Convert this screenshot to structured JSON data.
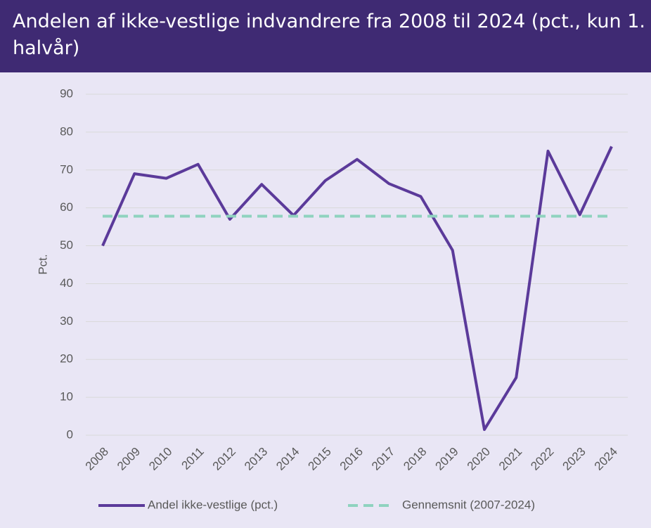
{
  "chart_data": {
    "type": "line",
    "title": "Andelen af ikke-vestlige indvandrere fra 2008 til 2024 (pct., kun 1. halvår)",
    "ylabel": "Pct.",
    "categories": [
      "2008",
      "2009",
      "2010",
      "2011",
      "2012",
      "2013",
      "2014",
      "2015",
      "2016",
      "2017",
      "2018",
      "2019",
      "2020",
      "2021",
      "2022",
      "2023",
      "2024"
    ],
    "series": [
      {
        "name": "Andel ikke-vestlige (pct.)",
        "color": "#5b3a9a",
        "style": "solid",
        "values": [
          50,
          69,
          67.8,
          71.5,
          57,
          66.2,
          58,
          67.2,
          72.8,
          66.4,
          63,
          48.8,
          1.5,
          15.2,
          75,
          58.2,
          76.2
        ]
      },
      {
        "name": "Gennemsnit (2007-2024)",
        "color": "#8fd3bf",
        "style": "dashed",
        "values": [
          57.8,
          57.8,
          57.8,
          57.8,
          57.8,
          57.8,
          57.8,
          57.8,
          57.8,
          57.8,
          57.8,
          57.8,
          57.8,
          57.8,
          57.8,
          57.8,
          57.8
        ]
      }
    ],
    "ylim": [
      0,
      90
    ],
    "yticks": [
      0,
      10,
      20,
      30,
      40,
      50,
      60,
      70,
      80,
      90
    ],
    "grid": true,
    "legend": "bottom"
  }
}
